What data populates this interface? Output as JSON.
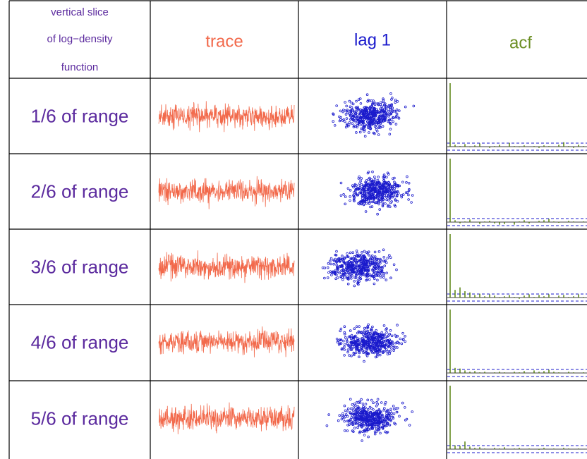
{
  "header": {
    "first": [
      "vertical slice",
      "of log−density",
      "function"
    ],
    "trace": "trace",
    "lag": "lag 1",
    "acf": "acf"
  },
  "acf_bound": 0.055,
  "rows": [
    {
      "label": "1/6 of range",
      "acf": [
        1,
        0.03,
        0.01,
        0.04,
        -0.01,
        0.02,
        0.05,
        0.0,
        -0.02,
        0.01,
        0.03,
        0.0,
        0.06,
        0.01,
        -0.01,
        0.02,
        0.0,
        0.01,
        -0.02,
        0.02,
        0.01,
        0.0,
        0.03,
        0.07,
        0.01,
        -0.02,
        0.03,
        0.01
      ]
    },
    {
      "label": "2/6 of range",
      "acf": [
        1,
        0.03,
        -0.02,
        0.01,
        0.04,
        0.0,
        -0.03,
        0.01,
        0.02,
        -0.02,
        -0.04,
        -0.03,
        0.0,
        -0.04,
        0.01,
        0.03,
        -0.02,
        0.0,
        0.02,
        0.03,
        0.05,
        0.01,
        -0.01,
        0.0,
        0.02,
        0.01,
        0.0,
        0.01
      ]
    },
    {
      "label": "3/6 of range",
      "acf": [
        1,
        0.12,
        0.16,
        0.1,
        0.08,
        0.04,
        0.06,
        0.02,
        0.05,
        0.03,
        -0.01,
        0.02,
        0.04,
        0.01,
        -0.02,
        0.03,
        0.05,
        0.01,
        0.04,
        0.02,
        0.05,
        0.0,
        0.03,
        0.04,
        0.01,
        0.02,
        0.05,
        0.01
      ]
    },
    {
      "label": "4/6 of range",
      "acf": [
        1,
        0.08,
        0.07,
        0.04,
        0.02,
        0.03,
        0.01,
        0.02,
        0.0,
        0.01,
        0.02,
        0.01,
        0.0,
        0.02,
        0.01,
        0.03,
        0.0,
        0.04,
        0.02,
        0.03,
        0.05,
        0.02,
        0.01,
        0.0,
        0.02,
        0.01,
        0.0,
        0.01
      ]
    },
    {
      "label": "5/6 of range",
      "acf": [
        1,
        0.06,
        0.05,
        0.12,
        0.04,
        0.02,
        0.03,
        0.01,
        0.0,
        0.02,
        0.01,
        0.03,
        0.0,
        0.01,
        0.02,
        0.0,
        0.01,
        0.0,
        -0.01,
        0.02,
        0.0,
        0.01,
        0.0,
        0.02,
        0.01,
        0.0,
        0.01,
        0.0
      ]
    }
  ]
}
